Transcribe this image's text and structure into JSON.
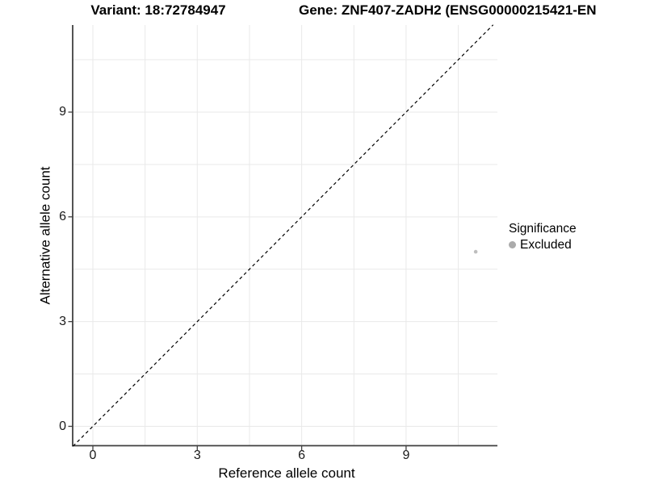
{
  "chart_data": {
    "type": "scatter",
    "title": "Variant: 18:72784947",
    "gene_label": "Gene: ZNF407-ZADH2 (ENSG00000215421-EN",
    "xlabel": "Reference allele count",
    "ylabel": "Alternative allele count",
    "x_ticks": [
      0,
      3,
      6,
      9
    ],
    "y_ticks": [
      0,
      3,
      6,
      9
    ],
    "xlim": [
      -0.57,
      11.5
    ],
    "ylim": [
      -0.57,
      11.5
    ],
    "grid": {
      "visible": true,
      "interval": 1.5
    },
    "identity_line": {
      "style": "dashed",
      "slope": 1,
      "intercept": 0
    },
    "points": [
      {
        "x": 11,
        "y": 5,
        "significance": "Excluded"
      }
    ],
    "legend": {
      "position": "right",
      "title": "Significance",
      "items": [
        {
          "label": "Excluded",
          "color": "#ababab"
        }
      ]
    },
    "colors": {
      "point": "#bebebe",
      "grid": "#e9e9e9",
      "axis": "#404040",
      "identity_line": "#000000",
      "background": "#ffffff"
    }
  }
}
